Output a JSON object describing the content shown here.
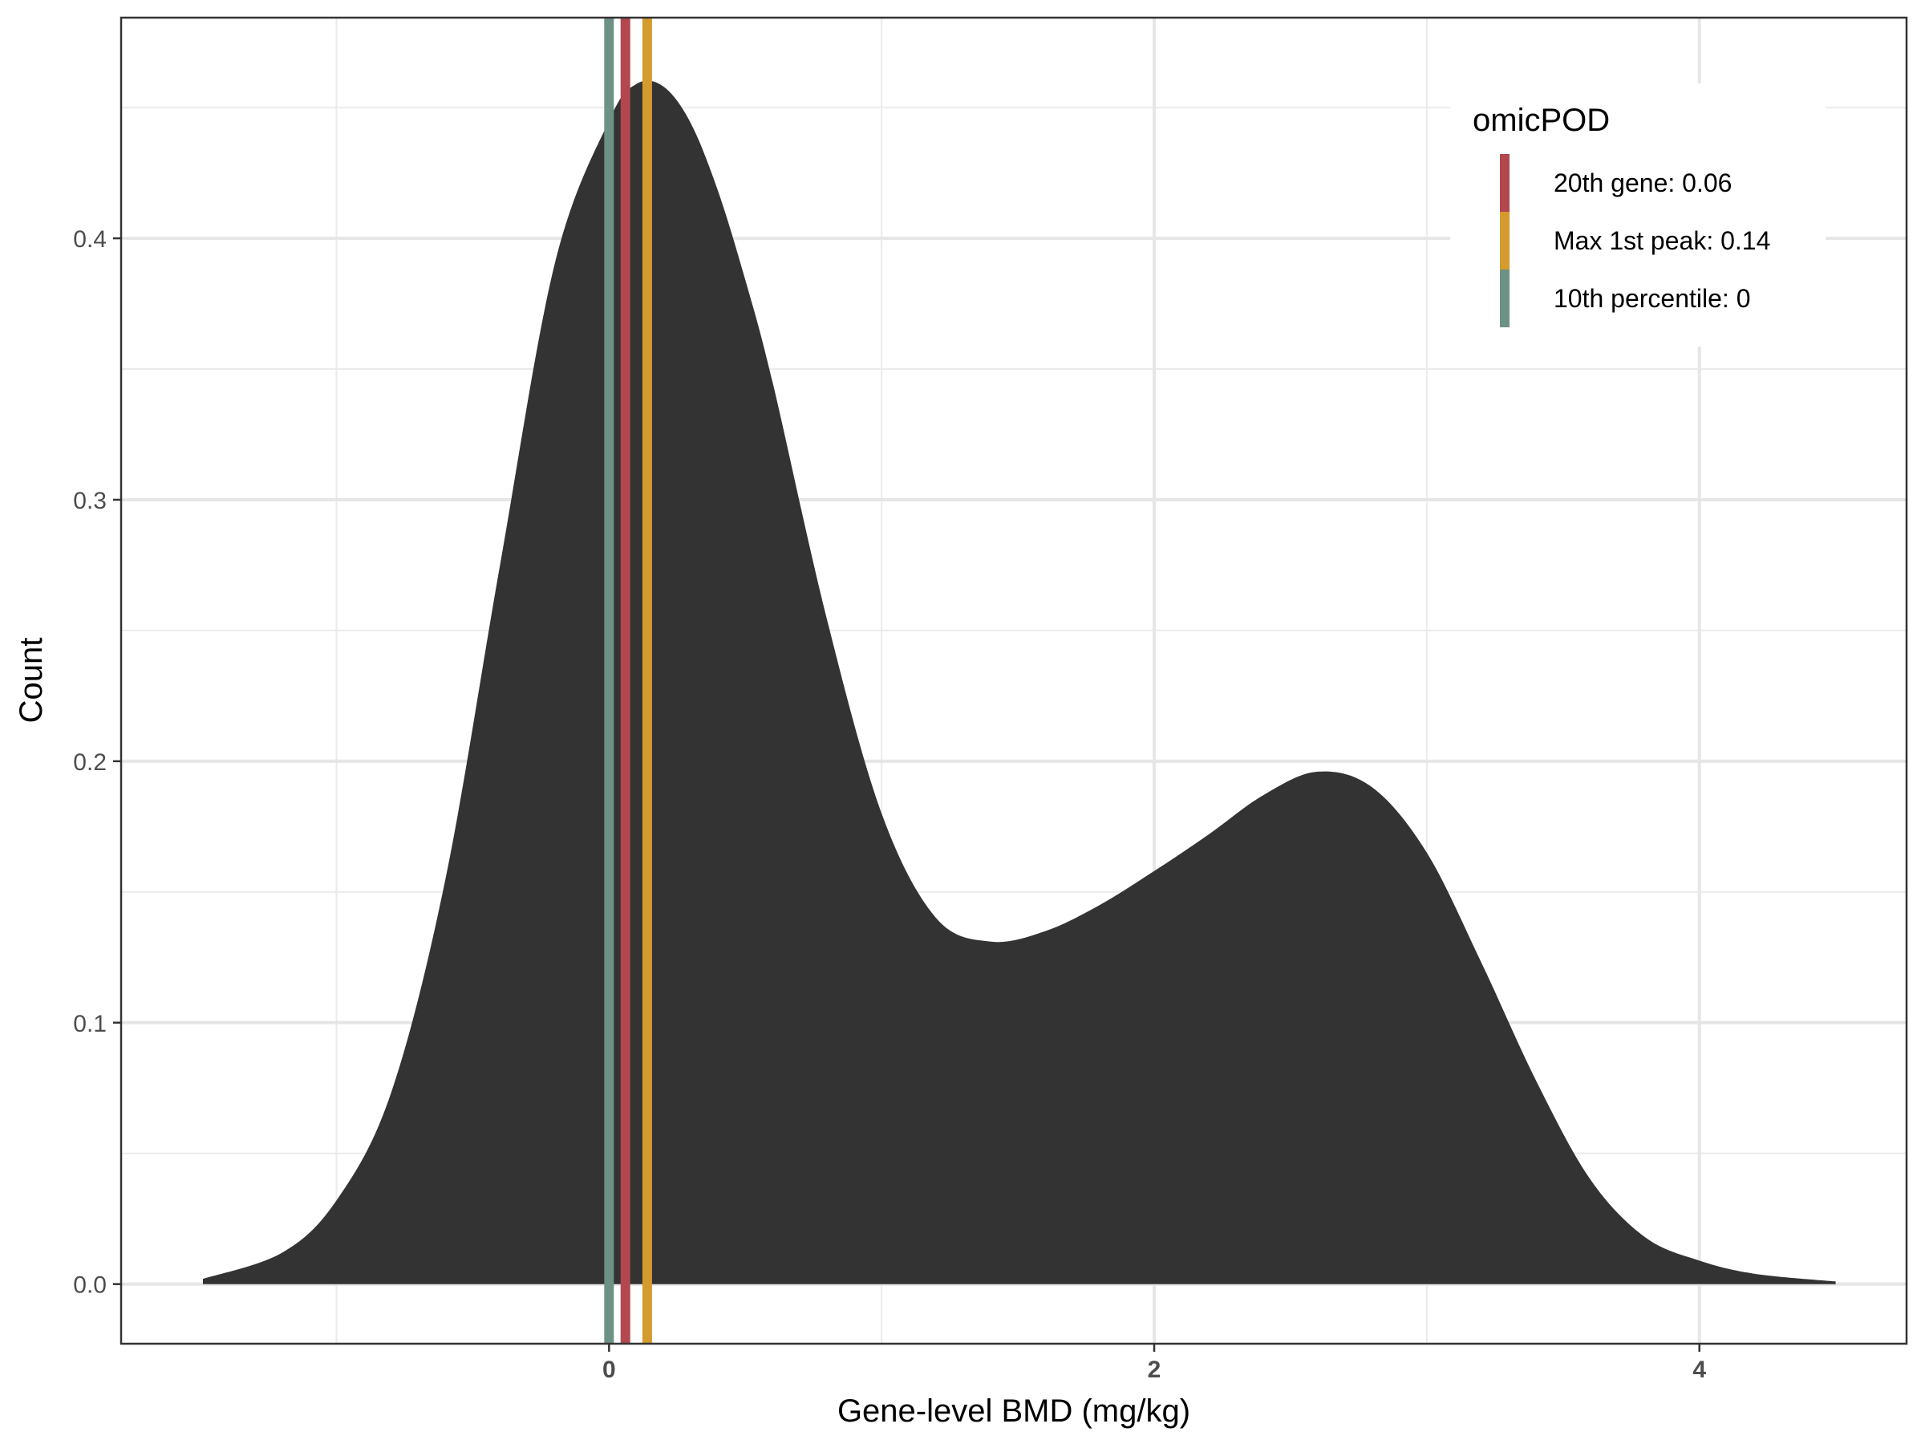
{
  "chart_data": {
    "type": "area",
    "xlabel": "Gene-level BMD (mg/kg)",
    "ylabel": "Count",
    "xlim": [
      -1.79,
      4.76
    ],
    "ylim": [
      -0.0228,
      0.4844
    ],
    "x_ticks": [
      0,
      2,
      4
    ],
    "x_tick_labels": [
      "0",
      "2",
      "4"
    ],
    "x_minor_breaks": [
      -1,
      1,
      3
    ],
    "y_ticks": [
      0.0,
      0.1,
      0.2,
      0.3,
      0.4
    ],
    "y_tick_labels": [
      "0.0",
      "0.1",
      "0.2",
      "0.3",
      "0.4"
    ],
    "y_minor_breaks": [
      0.05,
      0.15,
      0.25,
      0.35,
      0.45
    ],
    "grid": true,
    "density_fill": "#333333",
    "density_curve": {
      "x": [
        -1.49,
        -1.2,
        -1.0,
        -0.8,
        -0.6,
        -0.4,
        -0.2,
        0.0,
        0.1,
        0.2,
        0.3,
        0.4,
        0.5,
        0.6,
        0.8,
        1.0,
        1.2,
        1.4,
        1.6,
        1.8,
        2.0,
        2.2,
        2.4,
        2.6,
        2.8,
        3.0,
        3.2,
        3.4,
        3.6,
        3.8,
        4.0,
        4.2,
        4.5
      ],
      "y": [
        0.002,
        0.012,
        0.032,
        0.073,
        0.155,
        0.275,
        0.39,
        0.445,
        0.459,
        0.458,
        0.444,
        0.418,
        0.384,
        0.345,
        0.254,
        0.18,
        0.14,
        0.131,
        0.135,
        0.145,
        0.158,
        0.172,
        0.187,
        0.196,
        0.19,
        0.165,
        0.123,
        0.078,
        0.04,
        0.018,
        0.009,
        0.004,
        0.001
      ]
    },
    "vlines": [
      {
        "name": "20th gene: 0.06",
        "x": 0.06,
        "color": "#B2474F"
      },
      {
        "name": "Max 1st peak: 0.14",
        "x": 0.14,
        "color": "#D49B2E"
      },
      {
        "name": "10th percentile: 0",
        "x": 0.0,
        "color": "#6E9186"
      }
    ],
    "legend": {
      "title": "omicPOD",
      "position": "top-right",
      "entries": [
        {
          "label": "20th gene: 0.06",
          "color": "#B2474F"
        },
        {
          "label": "Max 1st peak: 0.14",
          "color": "#D49B2E"
        },
        {
          "label": "10th percentile: 0",
          "color": "#6E9186"
        }
      ]
    }
  }
}
